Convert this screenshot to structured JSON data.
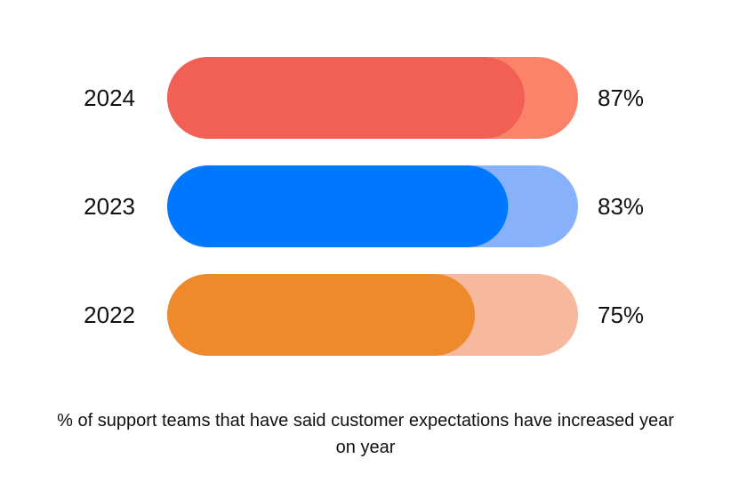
{
  "chart_data": {
    "type": "bar",
    "orientation": "horizontal",
    "categories": [
      "2024",
      "2023",
      "2022"
    ],
    "values": [
      87,
      83,
      75
    ],
    "value_labels": [
      "87%",
      "83%",
      "75%"
    ],
    "xlim": [
      0,
      100
    ],
    "colors": {
      "fill": [
        "#F15F55",
        "#0077FF",
        "#EE8A2C"
      ],
      "track": [
        "#FA8369",
        "#88B1FC",
        "#F7B99D"
      ]
    },
    "title": "",
    "xlabel": "",
    "ylabel": "",
    "grid": false,
    "legend": "none"
  },
  "caption": "% of support teams that have said customer expectations have increased year on year"
}
